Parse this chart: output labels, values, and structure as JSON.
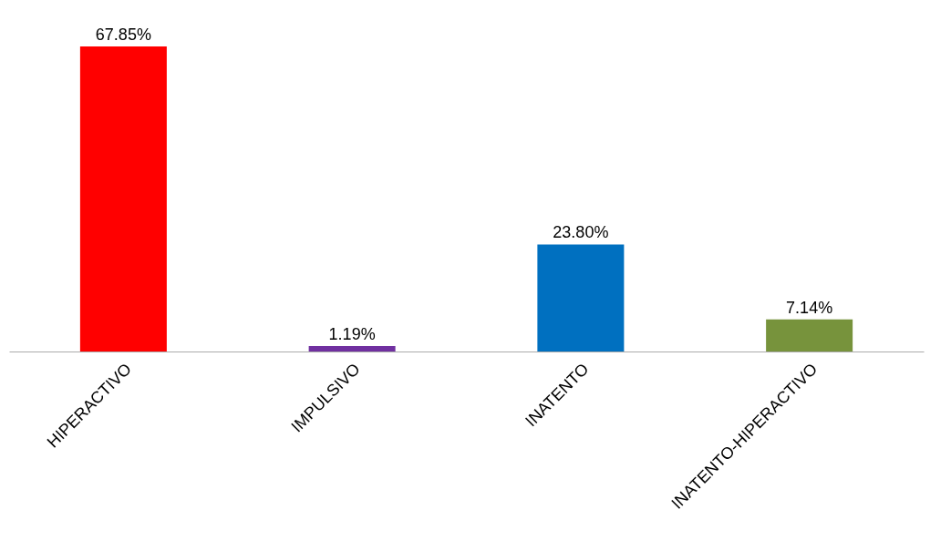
{
  "chart_data": {
    "type": "bar",
    "categories": [
      "HIPERACTIVO",
      "IMPULSIVO",
      "INATENTO",
      "INATENTO-HIPERACTIVO"
    ],
    "values": [
      67.85,
      1.19,
      23.8,
      7.14
    ],
    "colors": [
      "#ff0000",
      "#7030a0",
      "#0070c0",
      "#77933c"
    ],
    "value_labels": [
      "67.85%",
      "1.19%",
      "23.80%",
      "7.14%"
    ],
    "grid": false
  }
}
